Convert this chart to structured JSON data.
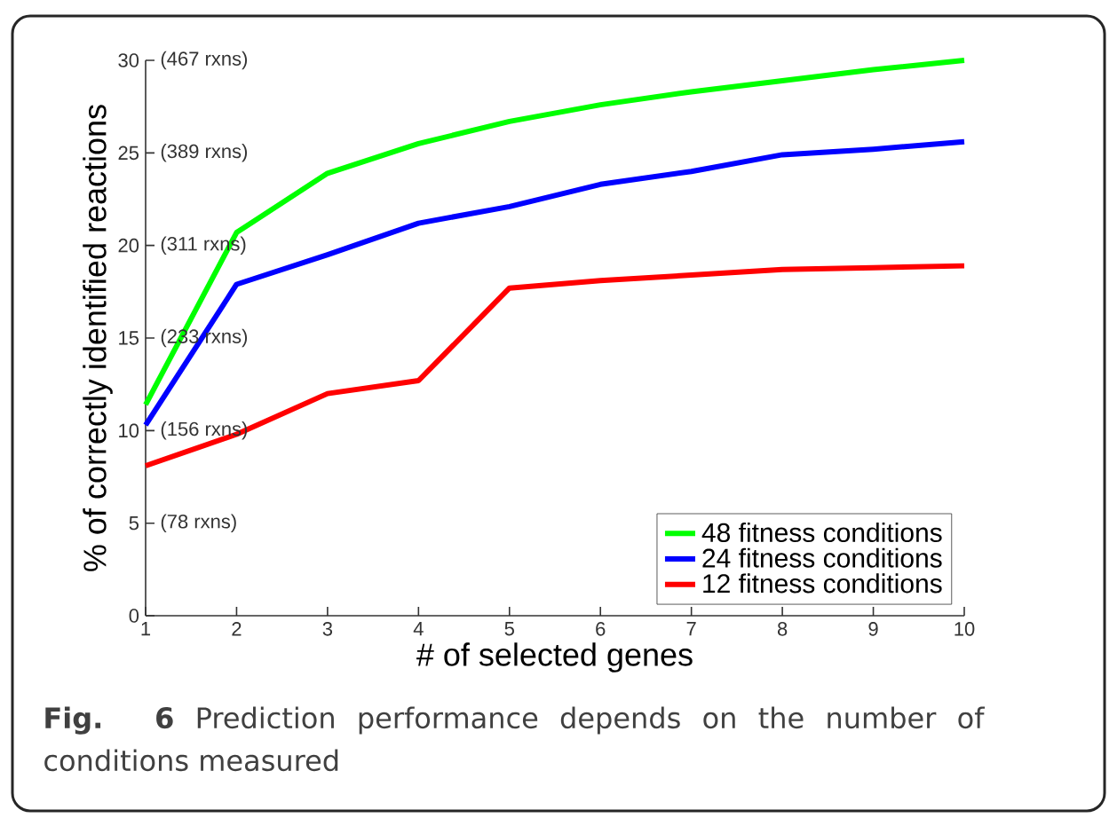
{
  "chart_data": {
    "type": "line",
    "xlabel": "# of selected genes",
    "ylabel": "% of correctly identified reactions",
    "x": [
      1,
      2,
      3,
      4,
      5,
      6,
      7,
      8,
      9,
      10
    ],
    "series": [
      {
        "name": "48 fitness conditions",
        "color": "#00ff00",
        "values": [
          11.4,
          20.7,
          23.9,
          25.5,
          26.7,
          27.6,
          28.3,
          28.9,
          29.5,
          30.0
        ]
      },
      {
        "name": "24 fitness conditions",
        "color": "#0000ff",
        "values": [
          10.3,
          17.9,
          19.5,
          21.2,
          22.1,
          23.3,
          24.0,
          24.9,
          25.2,
          25.6
        ]
      },
      {
        "name": "12 fitness conditions",
        "color": "#ff0000",
        "values": [
          8.1,
          9.8,
          12.0,
          12.7,
          17.7,
          18.1,
          18.4,
          18.7,
          18.8,
          18.9
        ]
      }
    ],
    "xlim": [
      1,
      10
    ],
    "ylim": [
      0,
      30
    ],
    "xticks": [
      1,
      2,
      3,
      4,
      5,
      6,
      7,
      8,
      9,
      10
    ],
    "yticks": [
      0,
      5,
      10,
      15,
      20,
      25,
      30
    ],
    "legend": "bottom right",
    "grid": false,
    "marker": "none",
    "line_style": "solid",
    "annotations": [
      "(78 rxns)",
      "(156 rxns)",
      "(233 rxns)",
      "(311 rxns)",
      "(389 rxns)",
      "(467 rxns)",
      "**Fig. 6** Prediction performance depends on the number of conditions measured"
    ]
  }
}
